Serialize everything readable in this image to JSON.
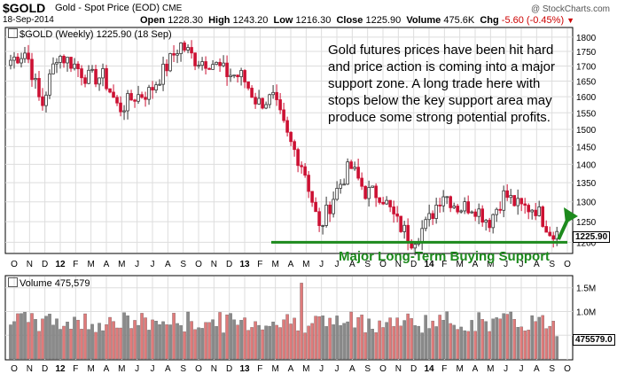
{
  "header": {
    "ticker": "$GOLD",
    "description": "Gold - Spot Price (EOD)",
    "exchange": "CME",
    "date": "18-Sep-2014",
    "open_label": "Open",
    "open": "1228.30",
    "high_label": "High",
    "high": "1243.20",
    "low_label": "Low",
    "low": "1216.30",
    "close_label": "Close",
    "close": "1225.90",
    "volume_label": "Volume",
    "volume": "475.6K",
    "chg_label": "Chg",
    "chg": "-5.60 (-0.45%)",
    "brand": "@ StockCharts.com"
  },
  "price_legend": "$GOLD (Weekly) 1225.90 (18 Sep)",
  "volume_legend": "Volume 475,579",
  "annotation": "Gold futures prices have been hit hard and price action is coming into a major support zone. A long trade here with stops below the key support area may produce some strong potential profits.",
  "support_label": "Major Long-Term Buying Support",
  "last_price_badge": "1225.90",
  "last_volume_badge": "475579.0",
  "colors": {
    "up_bar": "#333333",
    "down_bar": "#cc1133",
    "vol_down": "#e07a7a",
    "vol_up": "#8a8a8a",
    "support_line": "#1d8a1d",
    "grid": "#dddddd"
  },
  "chart_data": [
    {
      "type": "candlestick",
      "price_scale": "log",
      "y_ticks": [
        1200,
        1250,
        1300,
        1350,
        1400,
        1450,
        1500,
        1550,
        1600,
        1650,
        1700,
        1750,
        1800
      ],
      "ylim": [
        1180,
        1825
      ],
      "x_month_labels": [
        "O",
        "N",
        "D",
        "12",
        "F",
        "M",
        "A",
        "M",
        "J",
        "J",
        "A",
        "S",
        "O",
        "N",
        "D",
        "13",
        "F",
        "M",
        "A",
        "M",
        "J",
        "J",
        "A",
        "S",
        "O",
        "N",
        "D",
        "14",
        "F",
        "M",
        "A",
        "M",
        "J",
        "J",
        "A",
        "S",
        "O"
      ],
      "x_year_labels": [
        "12",
        "13",
        "14"
      ],
      "monthly_closes": [
        {
          "month": "2011-10",
          "close": 1720
        },
        {
          "month": "2011-11",
          "close": 1750
        },
        {
          "month": "2011-12",
          "close": 1565
        },
        {
          "month": "2012-01",
          "close": 1740
        },
        {
          "month": "2012-02",
          "close": 1710
        },
        {
          "month": "2012-03",
          "close": 1660
        },
        {
          "month": "2012-04",
          "close": 1665
        },
        {
          "month": "2012-05",
          "close": 1560
        },
        {
          "month": "2012-06",
          "close": 1600
        },
        {
          "month": "2012-07",
          "close": 1615
        },
        {
          "month": "2012-08",
          "close": 1690
        },
        {
          "month": "2012-09",
          "close": 1775
        },
        {
          "month": "2012-10",
          "close": 1720
        },
        {
          "month": "2012-11",
          "close": 1715
        },
        {
          "month": "2012-12",
          "close": 1675
        },
        {
          "month": "2013-01",
          "close": 1665
        },
        {
          "month": "2013-02",
          "close": 1580
        },
        {
          "month": "2013-03",
          "close": 1595
        },
        {
          "month": "2013-04",
          "close": 1470
        },
        {
          "month": "2013-05",
          "close": 1390
        },
        {
          "month": "2013-06",
          "close": 1230
        },
        {
          "month": "2013-07",
          "close": 1320
        },
        {
          "month": "2013-08",
          "close": 1395
        },
        {
          "month": "2013-09",
          "close": 1325
        },
        {
          "month": "2013-10",
          "close": 1320
        },
        {
          "month": "2013-11",
          "close": 1250
        },
        {
          "month": "2013-12",
          "close": 1205
        },
        {
          "month": "2014-01",
          "close": 1245
        },
        {
          "month": "2014-02",
          "close": 1325
        },
        {
          "month": "2014-03",
          "close": 1285
        },
        {
          "month": "2014-04",
          "close": 1290
        },
        {
          "month": "2014-05",
          "close": 1250
        },
        {
          "month": "2014-06",
          "close": 1320
        },
        {
          "month": "2014-07",
          "close": 1285
        },
        {
          "month": "2014-08",
          "close": 1285
        },
        {
          "month": "2014-09",
          "close": 1226
        }
      ],
      "support_level": 1200,
      "last_close": 1225.9
    },
    {
      "type": "bar",
      "title": "Volume",
      "y_ticks": [
        500000,
        1000000,
        1500000
      ],
      "y_tick_labels": [
        "",
        "1.0M",
        "1.5M"
      ],
      "ylim": [
        0,
        1700000
      ],
      "last_value": 475579
    }
  ]
}
